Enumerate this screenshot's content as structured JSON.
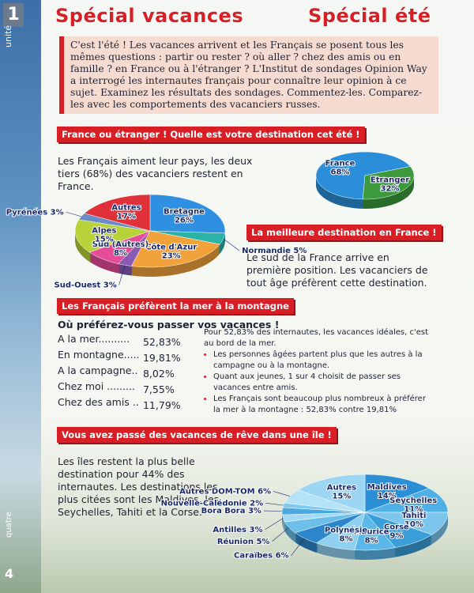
{
  "sidebar": {
    "number": "1",
    "unit": "unité",
    "page_word": "quatre",
    "page_number": "4"
  },
  "header": {
    "title_left": "Spécial vacances",
    "title_right": "Spécial été"
  },
  "intro": "C'est l'été ! Les vacances arrivent et les Français se posent tous les mêmes questions : partir ou rester ? où aller ? chez des amis ou en famille ? en France ou à l'étranger ? L'Institut de sondages Opinion Way a interrogé les internautes français pour connaître leur opinion à ce sujet. Examinez les résultats des sondages. Commentez-les. Comparez-les avec les comportements des vacanciers russes.",
  "sections": [
    {
      "heading": "France ou étranger ! Quelle est votre destination cet été !",
      "text": "Les Français aiment leur pays, les deux tiers (68%) des vacanciers restent en France."
    },
    {
      "heading": "La meilleure destination en France !",
      "text": "Le sud de la France arrive en première position. Les vacanciers de tout âge préfèrent cette destination."
    },
    {
      "heading": "Les Français préfèrent la mer à la montagne",
      "question": "Où préférez-vous passer vos vacances !",
      "list": [
        [
          "A la mer..........",
          "52,83%"
        ],
        [
          "En montagne.....",
          "19,81%"
        ],
        [
          "A la campagne..",
          "8,02%"
        ],
        [
          "Chez moi .........",
          "7,55%"
        ],
        [
          "Chez des amis ...",
          "11,79%"
        ]
      ],
      "paragraph": "Pour 52,83% des internautes, les vacances idéales, c'est au bord de la mer.",
      "bullets": [
        "Les personnes âgées partent plus que les autres à la campagne ou à la montagne.",
        "Quant aux jeunes, 1 sur 4 choisit de passer ses vacances entre amis.",
        "Les Français sont beaucoup plus nombreux à préférer la mer à la montagne : 52,83% contre 19,81%"
      ]
    },
    {
      "heading": "Vous avez passé des vacances de rêve dans une île !",
      "text": "Les îles restent la plus belle destination pour 44% des internautes. Les destinations les plus citées sont les Maldives, les Seychelles, Tahiti et la Corse."
    }
  ],
  "charts": [
    {
      "type": "pie",
      "categories": [
        "France",
        "Etranger"
      ],
      "values": [
        68,
        32
      ],
      "value_labels": [
        "68%",
        "32%"
      ],
      "colors": [
        "#2a8fd8",
        "#3c9a3c"
      ]
    },
    {
      "type": "pie",
      "categories": [
        "Bretagne",
        "Normandie",
        "Côte d'Azur",
        "Sud-Ouest",
        "Sud (Autres)",
        "Alpes",
        "Pyrénées",
        "Autres"
      ],
      "values": [
        26,
        5,
        23,
        3,
        8,
        15,
        3,
        17
      ],
      "value_labels": [
        "26%",
        "5%",
        "23%",
        "3%",
        "8%",
        "15%",
        "3%",
        "17%"
      ],
      "colors": [
        "#2f8fe0",
        "#2bb3a8",
        "#f2a23a",
        "#8a5bb5",
        "#e64c9a",
        "#b8d23a",
        "#6a8cc7",
        "#e0313a"
      ]
    },
    {
      "type": "pie",
      "categories": [
        "Maldives",
        "Seychelles",
        "Tahiti",
        "Corse",
        "Maurice",
        "Polynésie",
        "Caraïbes",
        "Réunion",
        "Antilles",
        "Bora Bora",
        "Nouvelle-Calédonie",
        "Autres DOM-TOM",
        "Autres"
      ],
      "values": [
        14,
        11,
        10,
        9,
        8,
        8,
        6,
        5,
        3,
        3,
        2,
        6,
        15
      ],
      "value_labels": [
        "14%",
        "11%",
        "10%",
        "9%",
        "8%",
        "8%",
        "6%",
        "5%",
        "3%",
        "3%",
        "2%",
        "6%",
        "15%"
      ],
      "colors": [
        "#2b8fd6",
        "#4fb0e6",
        "#7cc6ee",
        "#3a9fd9",
        "#5bb7e8",
        "#8fd0f0",
        "#2c86c9",
        "#6bbfe9",
        "#a2daf3",
        "#4aa8e0",
        "#7ec9ee",
        "#b4e2f6",
        "#9cd6f2"
      ]
    }
  ]
}
